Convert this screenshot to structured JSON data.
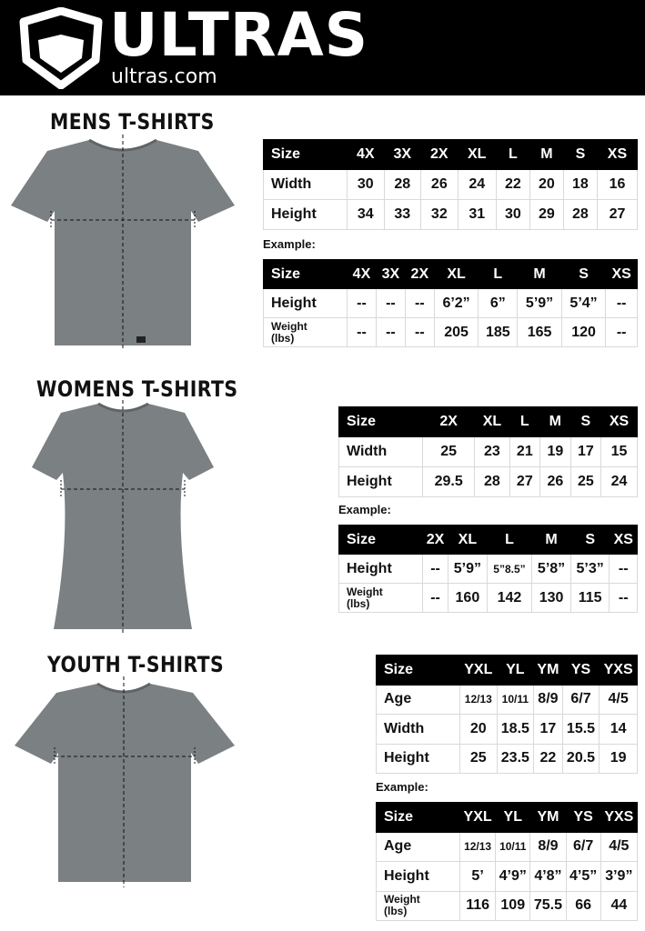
{
  "header": {
    "brand": "ULTRAS",
    "domain": "ultras.com",
    "logo": "pentagon-shield-logo",
    "background": "#000000"
  },
  "sections": [
    {
      "title": "MENS T-SHIRTS",
      "example_label": "Example:",
      "sizes": {
        "header": [
          "Size",
          "4X",
          "3X",
          "2X",
          "XL",
          "L",
          "M",
          "S",
          "XS"
        ],
        "rows": [
          [
            "Width",
            "30",
            "28",
            "26",
            "24",
            "22",
            "20",
            "18",
            "16"
          ],
          [
            "Height",
            "34",
            "33",
            "32",
            "31",
            "30",
            "29",
            "28",
            "27"
          ]
        ]
      },
      "example": {
        "header": [
          "Size",
          "4X",
          "3X",
          "2X",
          "XL",
          "L",
          "M",
          "S",
          "XS"
        ],
        "rows": [
          [
            "Height",
            "--",
            "--",
            "--",
            "6’2”",
            "6”",
            "5’9”",
            "5’4”",
            "--"
          ],
          [
            "Weight (lbs)",
            "--",
            "--",
            "--",
            "205",
            "185",
            "165",
            "120",
            "--"
          ]
        ]
      }
    },
    {
      "title": "WOMENS T-SHIRTS",
      "example_label": "Example:",
      "sizes": {
        "header": [
          "Size",
          "2X",
          "XL",
          "L",
          "M",
          "S",
          "XS"
        ],
        "rows": [
          [
            "Width",
            "25",
            "23",
            "21",
            "19",
            "17",
            "15"
          ],
          [
            "Height",
            "29.5",
            "28",
            "27",
            "26",
            "25",
            "24"
          ]
        ]
      },
      "example": {
        "header": [
          "Size",
          "2X",
          "XL",
          "L",
          "M",
          "S",
          "XS"
        ],
        "rows": [
          [
            "Height",
            "--",
            "5’9”",
            "5”8.5”",
            "5’8”",
            "5’3”",
            "--"
          ],
          [
            "Weight (lbs)",
            "--",
            "160",
            "142",
            "130",
            "115",
            "--"
          ]
        ]
      }
    },
    {
      "title": "YOUTH T-SHIRTS",
      "example_label": "Example:",
      "sizes": {
        "header": [
          "Size",
          "YXL",
          "YL",
          "YM",
          "YS",
          "YXS"
        ],
        "rows": [
          [
            "Age",
            "12/13",
            "10/11",
            "8/9",
            "6/7",
            "4/5"
          ],
          [
            "Width",
            "20",
            "18.5",
            "17",
            "15.5",
            "14"
          ],
          [
            "Height",
            "25",
            "23.5",
            "22",
            "20.5",
            "19"
          ]
        ]
      },
      "example": {
        "header": [
          "Size",
          "YXL",
          "YL",
          "YM",
          "YS",
          "YXS"
        ],
        "rows": [
          [
            "Age",
            "12/13",
            "10/11",
            "8/9",
            "6/7",
            "4/5"
          ],
          [
            "Height",
            "5’",
            "4’9”",
            "4’8”",
            "4’5”",
            "3’9”"
          ],
          [
            "Weight (lbs)",
            "116",
            "109",
            "75.5",
            "66",
            "44"
          ]
        ]
      }
    }
  ],
  "colors": {
    "shirt": "#7b8082",
    "table_header": "#000000",
    "grid": "#d9d9d9"
  }
}
